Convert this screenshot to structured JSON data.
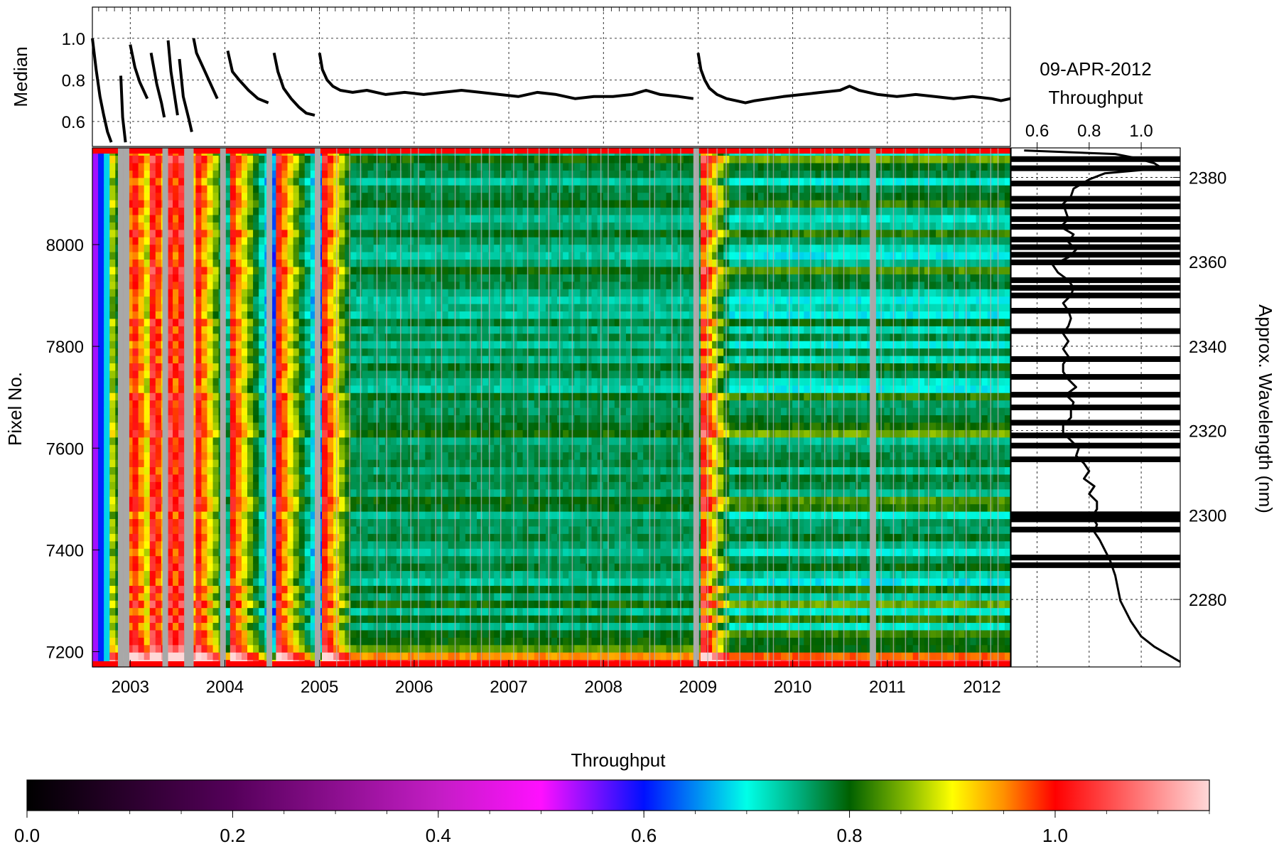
{
  "chart_data": [
    {
      "type": "line",
      "panel": "median-vs-time",
      "ylabel": "Median",
      "xlim": [
        2002.6,
        2012.3
      ],
      "ylim": [
        0.48,
        1.15
      ],
      "yticks": [
        0.6,
        0.8,
        1.0
      ],
      "ytick_labels": [
        "0.6",
        "0.8",
        "1.0"
      ],
      "grid": true,
      "series": [
        {
          "x": [
            2002.6,
            2002.64,
            2002.68,
            2002.72,
            2002.76,
            2002.8
          ],
          "y": [
            1.0,
            0.85,
            0.72,
            0.63,
            0.55,
            0.5
          ]
        },
        {
          "x": [
            2002.9,
            2002.92,
            2002.95
          ],
          "y": [
            0.82,
            0.62,
            0.5
          ]
        },
        {
          "x": [
            2003.0,
            2003.05,
            2003.1,
            2003.15,
            2003.18
          ],
          "y": [
            0.97,
            0.86,
            0.79,
            0.74,
            0.71
          ]
        },
        {
          "x": [
            2003.22,
            2003.28,
            2003.33,
            2003.36
          ],
          "y": [
            0.93,
            0.78,
            0.69,
            0.62
          ]
        },
        {
          "x": [
            2003.4,
            2003.43,
            2003.47,
            2003.5
          ],
          "y": [
            0.99,
            0.84,
            0.72,
            0.63
          ]
        },
        {
          "x": [
            2003.52,
            2003.56,
            2003.62,
            2003.65
          ],
          "y": [
            0.9,
            0.72,
            0.61,
            0.55
          ]
        },
        {
          "x": [
            2003.67,
            2003.7,
            2003.78,
            2003.86,
            2003.92
          ],
          "y": [
            1.0,
            0.93,
            0.85,
            0.77,
            0.71
          ]
        },
        {
          "x": [
            2004.03,
            2004.08,
            2004.15,
            2004.25,
            2004.35,
            2004.46
          ],
          "y": [
            0.94,
            0.84,
            0.8,
            0.75,
            0.71,
            0.69
          ]
        },
        {
          "x": [
            2004.52,
            2004.56,
            2004.62,
            2004.7,
            2004.78,
            2004.86,
            2004.95
          ],
          "y": [
            0.93,
            0.84,
            0.76,
            0.71,
            0.67,
            0.64,
            0.63
          ]
        },
        {
          "x": [
            2005.0,
            2005.03,
            2005.08,
            2005.14,
            2005.22,
            2005.35,
            2005.5,
            2005.7,
            2005.9,
            2006.1,
            2006.3,
            2006.5,
            2006.7,
            2006.9,
            2007.1,
            2007.3,
            2007.5,
            2007.7,
            2007.9,
            2008.1,
            2008.3,
            2008.45,
            2008.6,
            2008.8,
            2008.95
          ],
          "y": [
            0.93,
            0.85,
            0.8,
            0.77,
            0.75,
            0.74,
            0.75,
            0.73,
            0.74,
            0.73,
            0.74,
            0.75,
            0.74,
            0.73,
            0.72,
            0.74,
            0.73,
            0.71,
            0.72,
            0.72,
            0.73,
            0.75,
            0.73,
            0.72,
            0.71
          ]
        },
        {
          "x": [
            2009.0,
            2009.03,
            2009.07,
            2009.12,
            2009.2,
            2009.3,
            2009.4,
            2009.5,
            2009.6,
            2009.75,
            2009.9,
            2010.1,
            2010.3,
            2010.5,
            2010.6,
            2010.7,
            2010.9,
            2011.1,
            2011.3,
            2011.5,
            2011.7,
            2011.9,
            2012.1,
            2012.2,
            2012.3
          ],
          "y": [
            0.93,
            0.85,
            0.8,
            0.76,
            0.73,
            0.71,
            0.7,
            0.69,
            0.7,
            0.71,
            0.72,
            0.73,
            0.74,
            0.75,
            0.77,
            0.75,
            0.73,
            0.72,
            0.73,
            0.72,
            0.71,
            0.72,
            0.71,
            0.7,
            0.71
          ]
        }
      ]
    },
    {
      "type": "heatmap",
      "panel": "throughput-map",
      "ylabel": "Pixel No.",
      "xlim": [
        2002.6,
        2012.3
      ],
      "ylim": [
        7170,
        8190
      ],
      "xticks": [
        2003,
        2004,
        2005,
        2006,
        2007,
        2008,
        2009,
        2010,
        2011,
        2012
      ],
      "xtick_labels": [
        "2003",
        "2004",
        "2005",
        "2006",
        "2007",
        "2008",
        "2009",
        "2010",
        "2011",
        "2012"
      ],
      "yticks": [
        7200,
        7400,
        7600,
        7800,
        8000
      ],
      "ytick_labels": [
        "7200",
        "7400",
        "7600",
        "7800",
        "8000"
      ],
      "right_axis": {
        "label": "Approx. Wavelength (nm)",
        "ticks": [
          2280,
          2300,
          2320,
          2340,
          2360,
          2380
        ],
        "tick_labels": [
          "2280",
          "2300",
          "2320",
          "2340",
          "2360",
          "2380"
        ]
      },
      "gaps": [
        2002.9,
        2002.96,
        2003.37,
        2003.6,
        2003.64,
        2003.98,
        2004.47,
        2004.98,
        2008.98,
        2010.85
      ],
      "decon_epochs": [
        2002.6,
        2002.9,
        2003.0,
        2003.22,
        2003.4,
        2003.52,
        2003.67,
        2004.03,
        2004.52,
        2005.0,
        2009.0
      ],
      "colorbar": {
        "label": "Throughput",
        "range": [
          0.0,
          1.15
        ],
        "ticks": [
          0.0,
          0.2,
          0.4,
          0.6,
          0.8,
          1.0
        ],
        "tick_labels": [
          "0.0",
          "0.2",
          "0.4",
          "0.6",
          "0.8",
          "1.0"
        ],
        "stops": [
          {
            "v": 0.0,
            "color": "#000000"
          },
          {
            "v": 0.2,
            "color": "#55005a"
          },
          {
            "v": 0.4,
            "color": "#c31dc4"
          },
          {
            "v": 0.5,
            "color": "#ff10ff"
          },
          {
            "v": 0.6,
            "color": "#0010ff"
          },
          {
            "v": 0.7,
            "color": "#00ffe8"
          },
          {
            "v": 0.75,
            "color": "#00b080"
          },
          {
            "v": 0.8,
            "color": "#006000"
          },
          {
            "v": 0.86,
            "color": "#90c000"
          },
          {
            "v": 0.9,
            "color": "#ffff00"
          },
          {
            "v": 0.95,
            "color": "#ff9000"
          },
          {
            "v": 1.0,
            "color": "#ff0000"
          },
          {
            "v": 1.15,
            "color": "#ffd8d8"
          }
        ]
      }
    },
    {
      "type": "line",
      "panel": "throughput-profile",
      "title": "09-APR-2012",
      "xlabel": "Throughput",
      "xlim": [
        0.5,
        1.15
      ],
      "xticks": [
        0.6,
        0.8,
        1.0
      ],
      "xtick_labels": [
        "0.6",
        "0.8",
        "1.0"
      ],
      "ylim": [
        7170,
        8190
      ],
      "grid": true,
      "series": [
        {
          "x": [
            0.55,
            0.9,
            0.98,
            1.05,
            1.08,
            0.86,
            0.8,
            0.74,
            0.73,
            0.7,
            0.71,
            0.72,
            0.69,
            0.74,
            0.72,
            0.75,
            0.72,
            0.66,
            0.68,
            0.72,
            0.74,
            0.73,
            0.7,
            0.72,
            0.73,
            0.72,
            0.7,
            0.72,
            0.7,
            0.72,
            0.7,
            0.7,
            0.72,
            0.75,
            0.71,
            0.74,
            0.73,
            0.73,
            0.7,
            0.7,
            0.73,
            0.76,
            0.75,
            0.78,
            0.8,
            0.78,
            0.82,
            0.8,
            0.83,
            0.83,
            0.81,
            0.83,
            0.82,
            0.84,
            0.86,
            0.88,
            0.9,
            0.92,
            0.96,
            1.0,
            1.05,
            1.1,
            1.15
          ],
          "y": [
            8185,
            8178,
            8170,
            8160,
            8150,
            8140,
            8128,
            8110,
            8095,
            8080,
            8065,
            8050,
            8035,
            8020,
            8005,
            7990,
            7975,
            7960,
            7945,
            7930,
            7915,
            7900,
            7885,
            7870,
            7855,
            7840,
            7825,
            7810,
            7795,
            7780,
            7765,
            7750,
            7735,
            7720,
            7705,
            7690,
            7675,
            7660,
            7645,
            7630,
            7615,
            7600,
            7585,
            7570,
            7555,
            7540,
            7525,
            7510,
            7495,
            7480,
            7465,
            7450,
            7435,
            7420,
            7400,
            7380,
            7350,
            7300,
            7260,
            7230,
            7210,
            7195,
            7180
          ]
        }
      ],
      "dead_pixels": [
        8168,
        8150,
        8120,
        8090,
        8075,
        8050,
        8035,
        8010,
        7995,
        7980,
        7965,
        7930,
        7915,
        7900,
        7870,
        7830,
        7775,
        7740,
        7705,
        7680,
        7650,
        7625,
        7605,
        7578,
        7470,
        7460,
        7440,
        7385,
        7370
      ]
    }
  ]
}
